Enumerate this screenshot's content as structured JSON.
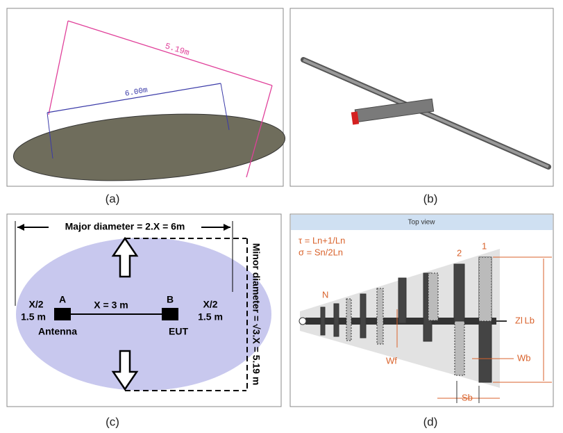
{
  "panels": {
    "a": {
      "caption": "(a)",
      "minor_label": "5.19m",
      "major_label": "6.00m"
    },
    "b": {
      "caption": "(b)"
    },
    "c": {
      "caption": "(c)",
      "major": "Major diameter = 2.X = 6m",
      "minor": "Minor diameter = √3.X = 5.19 m",
      "left_half": "X/2",
      "left_half_value": "1.5 m",
      "point_a": "A",
      "distance": "X = 3 m",
      "point_b": "B",
      "right_half": "X/2",
      "right_half_value": "1.5 m",
      "antenna": "Antenna",
      "eut": "EUT"
    },
    "d": {
      "caption": "(d)",
      "header": "Top view",
      "tau": "τ = Ln+1/Ln",
      "sigma": "σ = Sn/2Ln",
      "n": "N",
      "two": "2",
      "one": "1",
      "zl": "Zl",
      "lb": "Lb",
      "wf": "Wf",
      "wb": "Wb",
      "sb": "Sb"
    }
  }
}
